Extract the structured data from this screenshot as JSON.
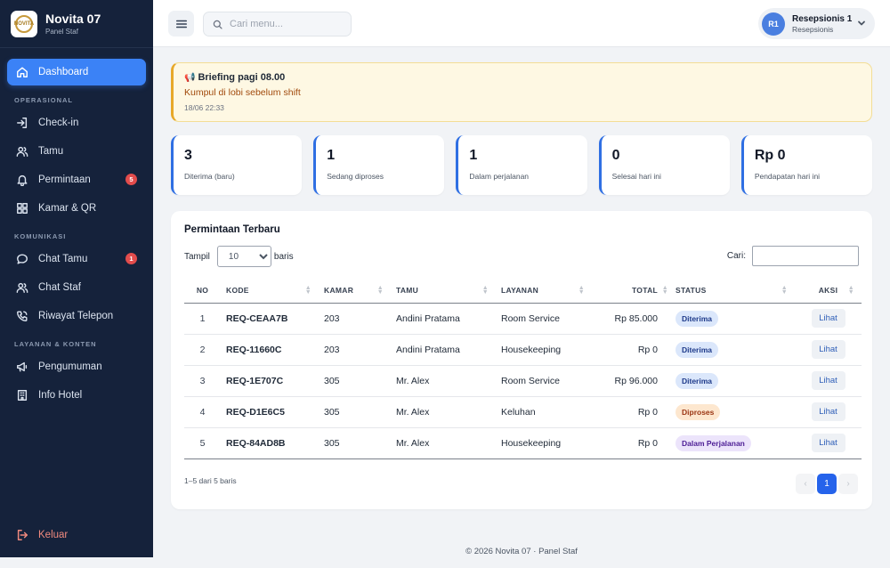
{
  "brand": {
    "name": "Novita 07",
    "subtitle": "Panel Staf",
    "logo_text": "NOVITA"
  },
  "sidebar": {
    "dashboard": "Dashboard",
    "sections": {
      "operasional": "OPERASIONAL",
      "komunikasi": "KOMUNIKASI",
      "layanan": "LAYANAN & KONTEN"
    },
    "operasional_items": [
      {
        "label": "Check-in",
        "icon": "login-icon"
      },
      {
        "label": "Tamu",
        "icon": "users-icon"
      },
      {
        "label": "Permintaan",
        "icon": "bell-icon",
        "badge": "5"
      },
      {
        "label": "Kamar & QR",
        "icon": "grid-icon"
      }
    ],
    "komunikasi_items": [
      {
        "label": "Chat Tamu",
        "icon": "chat-icon",
        "badge": "1"
      },
      {
        "label": "Chat Staf",
        "icon": "users-icon"
      },
      {
        "label": "Riwayat Telepon",
        "icon": "phone-icon"
      }
    ],
    "layanan_items": [
      {
        "label": "Pengumuman",
        "icon": "megaphone-icon"
      },
      {
        "label": "Info Hotel",
        "icon": "building-icon"
      }
    ],
    "logout": "Keluar"
  },
  "topbar": {
    "search_placeholder": "Cari menu...",
    "user": {
      "initials": "R1",
      "name": "Resepsionis 1",
      "role": "Resepsionis"
    }
  },
  "alert": {
    "title": "Briefing pagi 08.00",
    "message": "Kumpul di lobi sebelum shift",
    "time": "18/06 22:33"
  },
  "stats": [
    {
      "value": "3",
      "label": "Diterima (baru)"
    },
    {
      "value": "1",
      "label": "Sedang diproses"
    },
    {
      "value": "1",
      "label": "Dalam perjalanan"
    },
    {
      "value": "0",
      "label": "Selesai hari ini"
    },
    {
      "value": "Rp 0",
      "label": "Pendapatan hari ini"
    }
  ],
  "table": {
    "title": "Permintaan Terbaru",
    "show_label": "Tampil",
    "show_value": "10",
    "rows_label": "baris",
    "search_label": "Cari:",
    "columns": {
      "no": "NO",
      "kode": "KODE",
      "kamar": "KAMAR",
      "tamu": "TAMU",
      "layanan": "LAYANAN",
      "total": "TOTAL",
      "status": "STATUS",
      "aksi": "AKSI"
    },
    "rows": [
      {
        "no": "1",
        "kode": "REQ-CEAA7B",
        "kamar": "203",
        "tamu": "Andini Pratama",
        "layanan": "Room Service",
        "total": "Rp 85.000",
        "status": "Diterima",
        "aksi": "Lihat"
      },
      {
        "no": "2",
        "kode": "REQ-11660C",
        "kamar": "203",
        "tamu": "Andini Pratama",
        "layanan": "Housekeeping",
        "total": "Rp 0",
        "status": "Diterima",
        "aksi": "Lihat"
      },
      {
        "no": "3",
        "kode": "REQ-1E707C",
        "kamar": "305",
        "tamu": "Mr. Alex",
        "layanan": "Room Service",
        "total": "Rp 96.000",
        "status": "Diterima",
        "aksi": "Lihat"
      },
      {
        "no": "4",
        "kode": "REQ-D1E6C5",
        "kamar": "305",
        "tamu": "Mr. Alex",
        "layanan": "Keluhan",
        "total": "Rp 0",
        "status": "Diproses",
        "aksi": "Lihat"
      },
      {
        "no": "5",
        "kode": "REQ-84AD8B",
        "kamar": "305",
        "tamu": "Mr. Alex",
        "layanan": "Housekeeping",
        "total": "Rp 0",
        "status": "Dalam Perjalanan",
        "aksi": "Lihat"
      }
    ],
    "info": "1–5 dari 5 baris",
    "pagination": {
      "prev": "‹",
      "current": "1",
      "next": "›"
    }
  },
  "status_colors": {
    "Diterima": {
      "bg": "#dbe7fb",
      "fg": "#1e3a8a"
    },
    "Diproses": {
      "bg": "#fde7cf",
      "fg": "#9a3412"
    },
    "Dalam Perjalanan": {
      "bg": "#ece4fb",
      "fg": "#4c1d95"
    }
  },
  "footer": "© 2026 Novita 07 · Panel Staf"
}
